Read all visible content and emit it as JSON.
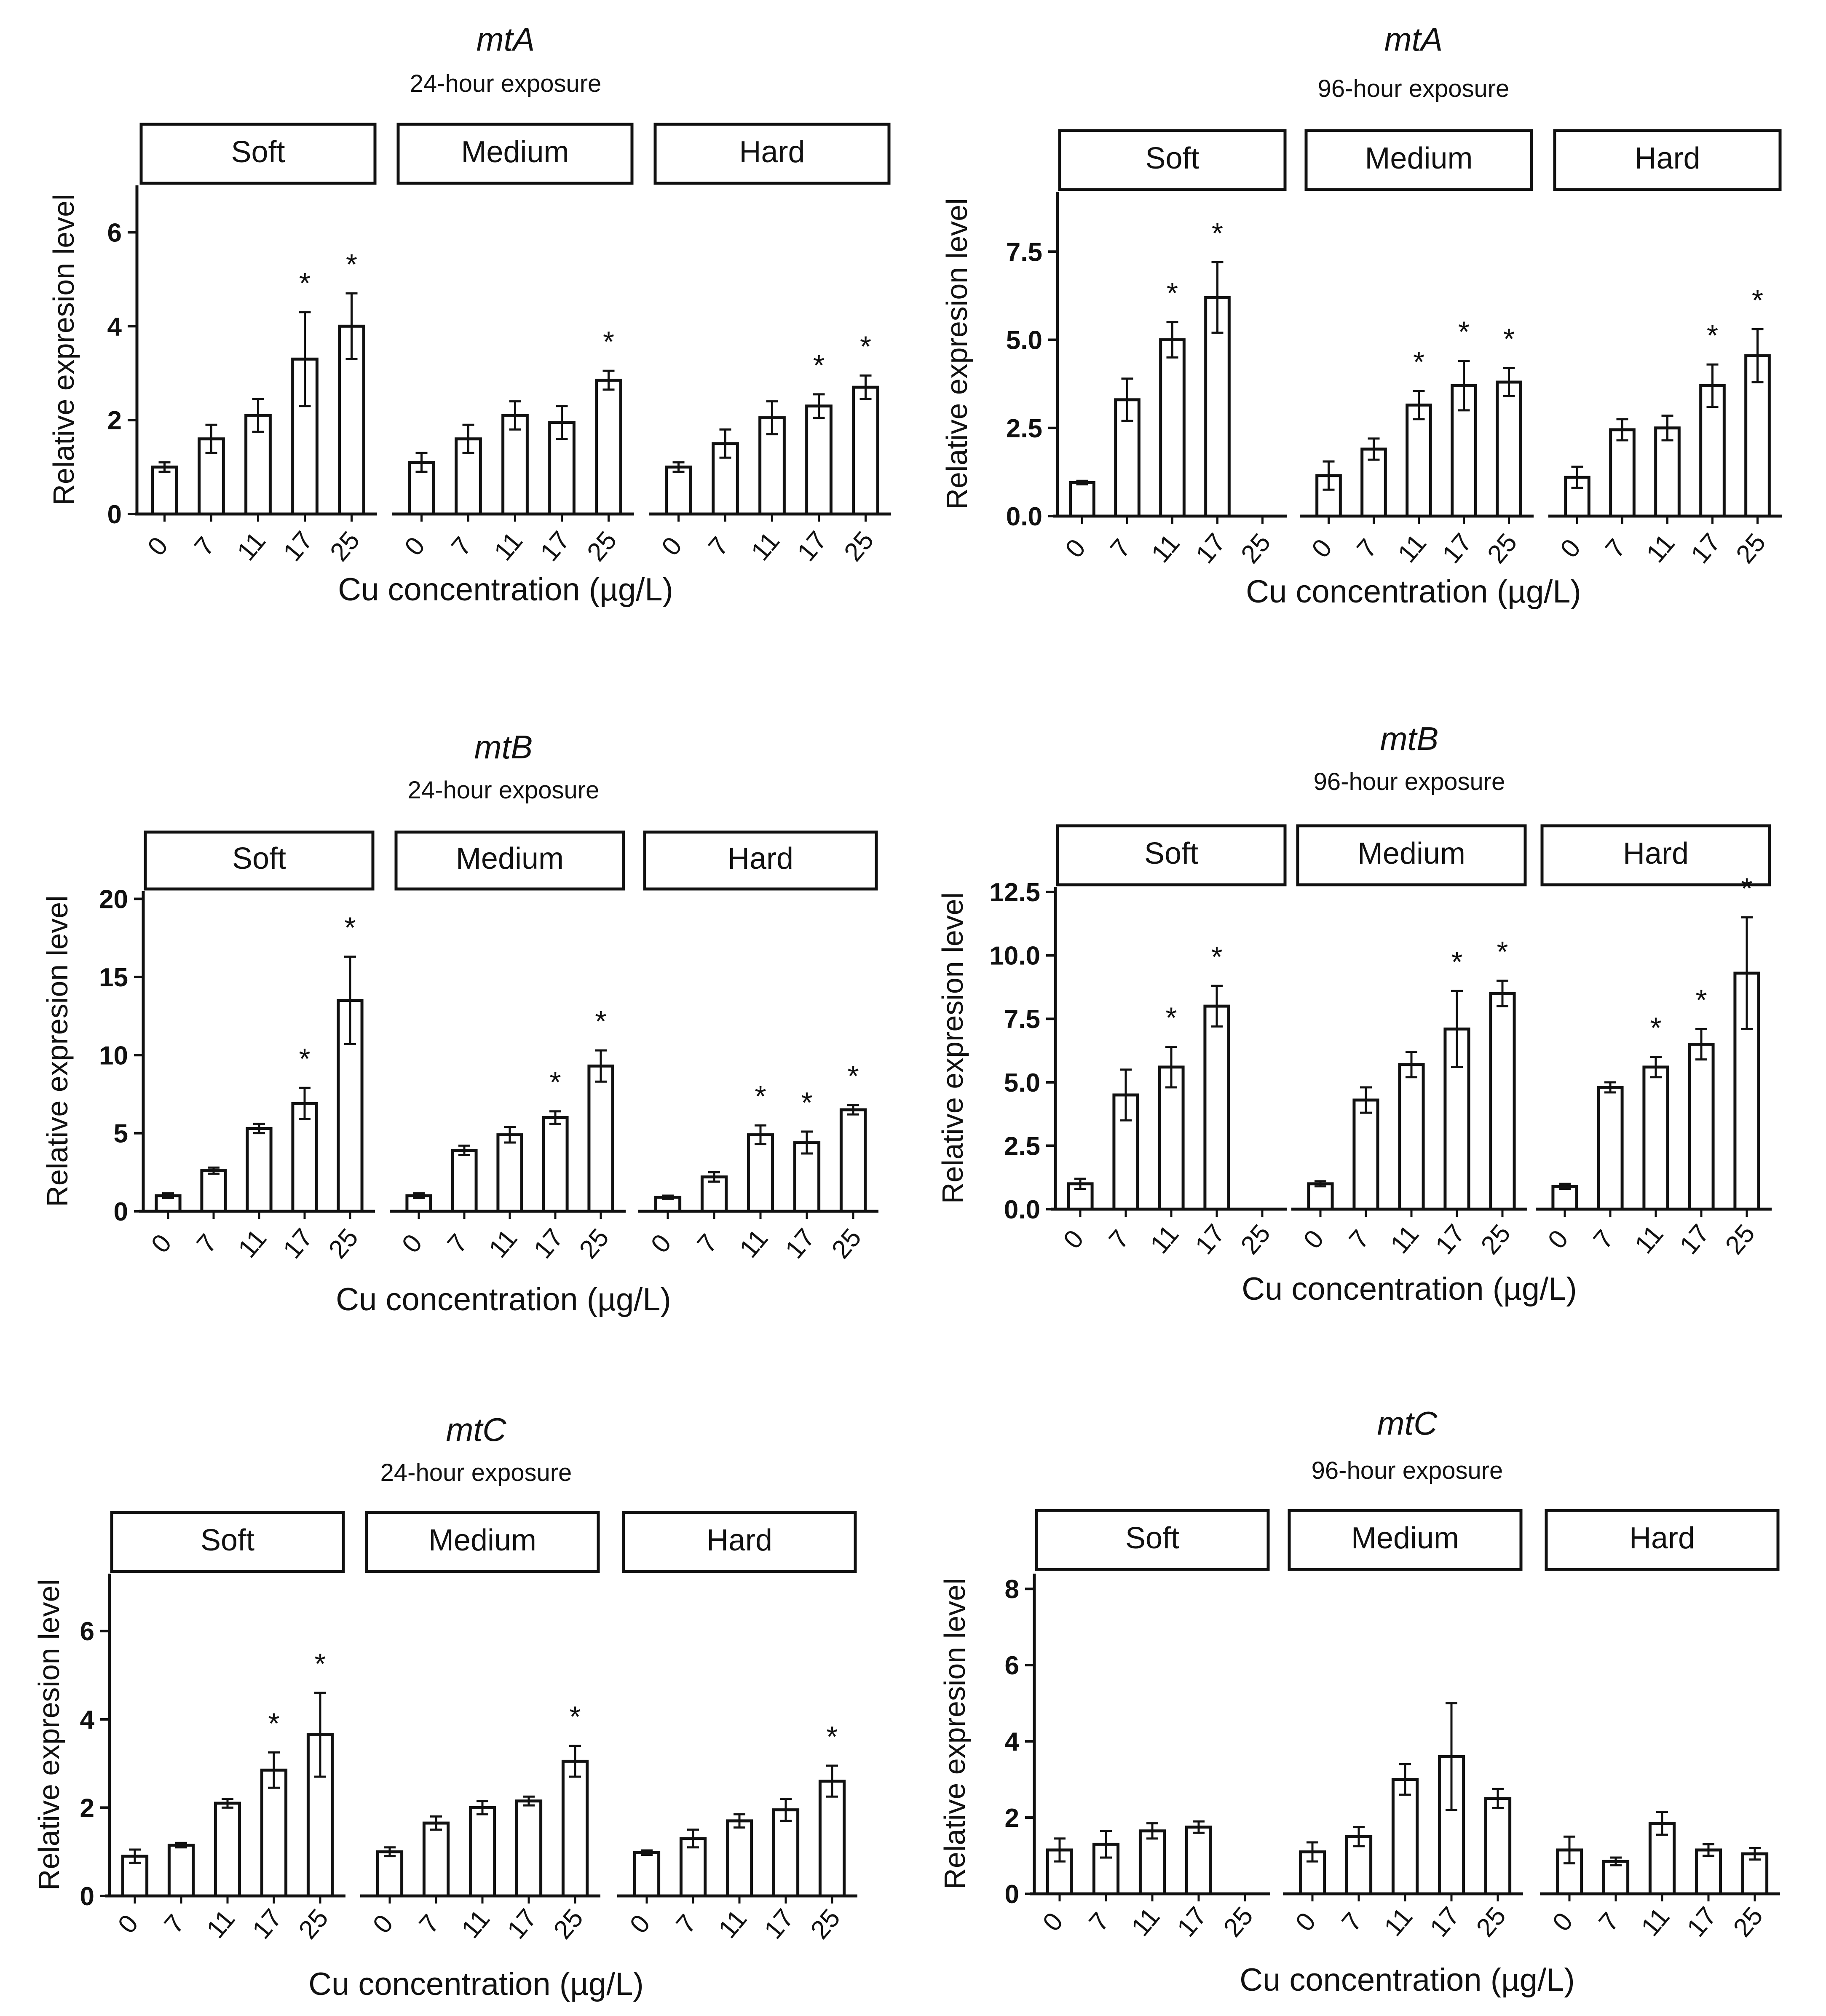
{
  "colors": {
    "ink": "#111111",
    "bar_fill": "#ffffff",
    "background": "#ffffff"
  },
  "chart_data": [
    {
      "type": "bar",
      "gene": "mtA",
      "title": "mtA",
      "subtitle": "24-hour exposure",
      "ylabel": "Relative expresion level",
      "xlabel": "Cu concentration (µg/L)",
      "ylim": [
        0,
        7
      ],
      "yticks": [
        "0",
        "2",
        "4",
        "6"
      ],
      "ytick_values": [
        0,
        2,
        4,
        6
      ],
      "categories": [
        "0",
        "7",
        "11",
        "17",
        "25"
      ],
      "panels": [
        {
          "name": "Soft",
          "values": [
            1.0,
            1.6,
            2.1,
            3.3,
            4.0
          ],
          "errors": [
            0.1,
            0.3,
            0.35,
            1.0,
            0.7
          ],
          "signif": [
            "",
            "",
            "",
            "*",
            "*"
          ]
        },
        {
          "name": "Medium",
          "values": [
            1.1,
            1.6,
            2.1,
            1.95,
            2.85
          ],
          "errors": [
            0.2,
            0.3,
            0.3,
            0.35,
            0.2
          ],
          "signif": [
            "",
            "",
            "",
            "",
            "*"
          ]
        },
        {
          "name": "Hard",
          "values": [
            1.0,
            1.5,
            2.05,
            2.3,
            2.7
          ],
          "errors": [
            0.1,
            0.3,
            0.35,
            0.25,
            0.25
          ],
          "signif": [
            "",
            "",
            "",
            "*",
            "*"
          ]
        }
      ]
    },
    {
      "type": "bar",
      "gene": "mtA",
      "title": "mtA",
      "subtitle": "96-hour exposure",
      "ylabel": "Relative expresion level",
      "xlabel": "Cu concentration (µg/L)",
      "ylim": [
        0,
        9.2
      ],
      "yticks": [
        "0.0",
        "2.5",
        "5.0",
        "7.5"
      ],
      "ytick_values": [
        0,
        2.5,
        5.0,
        7.5
      ],
      "categories": [
        "0",
        "7",
        "11",
        "17",
        "25"
      ],
      "panels": [
        {
          "name": "Soft",
          "values": [
            0.95,
            3.3,
            5.0,
            6.2,
            null
          ],
          "errors": [
            0.05,
            0.6,
            0.5,
            1.0,
            null
          ],
          "signif": [
            "",
            "",
            "*",
            "*",
            ""
          ]
        },
        {
          "name": "Medium",
          "values": [
            1.15,
            1.9,
            3.15,
            3.7,
            3.8
          ],
          "errors": [
            0.4,
            0.3,
            0.4,
            0.7,
            0.4
          ],
          "signif": [
            "",
            "",
            "*",
            "*",
            "*"
          ]
        },
        {
          "name": "Hard",
          "values": [
            1.1,
            2.45,
            2.5,
            3.7,
            4.55
          ],
          "errors": [
            0.3,
            0.3,
            0.35,
            0.6,
            0.75
          ],
          "signif": [
            "",
            "",
            "",
            "*",
            "*"
          ]
        }
      ]
    },
    {
      "type": "bar",
      "gene": "mtB",
      "title": "mtB",
      "subtitle": "24-hour exposure",
      "ylabel": "Relative expresion level",
      "xlabel": "Cu concentration (µg/L)",
      "ylim": [
        0,
        20.5
      ],
      "yticks": [
        "0",
        "5",
        "10",
        "15",
        "20"
      ],
      "ytick_values": [
        0,
        5,
        10,
        15,
        20
      ],
      "categories": [
        "0",
        "7",
        "11",
        "17",
        "25"
      ],
      "panels": [
        {
          "name": "Soft",
          "values": [
            1.0,
            2.6,
            5.3,
            6.9,
            13.5
          ],
          "errors": [
            0.15,
            0.2,
            0.3,
            1.0,
            2.8
          ],
          "signif": [
            "",
            "",
            "",
            "*",
            "*"
          ]
        },
        {
          "name": "Medium",
          "values": [
            1.0,
            3.9,
            4.9,
            6.0,
            9.3
          ],
          "errors": [
            0.15,
            0.3,
            0.5,
            0.4,
            1.0
          ],
          "signif": [
            "",
            "",
            "",
            "*",
            "*"
          ]
        },
        {
          "name": "Hard",
          "values": [
            0.9,
            2.2,
            4.9,
            4.4,
            6.5
          ],
          "errors": [
            0.1,
            0.3,
            0.6,
            0.7,
            0.3
          ],
          "signif": [
            "",
            "",
            "*",
            "*",
            "*"
          ]
        }
      ]
    },
    {
      "type": "bar",
      "gene": "mtB",
      "title": "mtB",
      "subtitle": "96-hour exposure",
      "ylabel": "Relative expresion level",
      "xlabel": "Cu concentration (µg/L)",
      "ylim": [
        0,
        12.7
      ],
      "yticks": [
        "0.0",
        "2.5",
        "5.0",
        "7.5",
        "10.0",
        "12.5"
      ],
      "ytick_values": [
        0,
        2.5,
        5.0,
        7.5,
        10.0,
        12.5
      ],
      "categories": [
        "0",
        "7",
        "11",
        "17",
        "25"
      ],
      "panels": [
        {
          "name": "Soft",
          "values": [
            1.0,
            4.5,
            5.6,
            8.0,
            null
          ],
          "errors": [
            0.2,
            1.0,
            0.8,
            0.8,
            null
          ],
          "signif": [
            "",
            "",
            "*",
            "*",
            ""
          ]
        },
        {
          "name": "Medium",
          "values": [
            1.0,
            4.3,
            5.7,
            7.1,
            8.5
          ],
          "errors": [
            0.1,
            0.5,
            0.5,
            1.5,
            0.5
          ],
          "signif": [
            "",
            "",
            "",
            "*",
            "*"
          ]
        },
        {
          "name": "Hard",
          "values": [
            0.9,
            4.8,
            5.6,
            6.5,
            9.3
          ],
          "errors": [
            0.1,
            0.2,
            0.4,
            0.6,
            2.2
          ],
          "signif": [
            "",
            "",
            "*",
            "*",
            "*"
          ]
        }
      ]
    },
    {
      "type": "bar",
      "gene": "mtC",
      "title": "mtC",
      "subtitle": "24-hour exposure",
      "ylabel": "Relative expresion level",
      "xlabel": "Cu concentration (µg/L)",
      "ylim": [
        0,
        7.3
      ],
      "yticks": [
        "0",
        "2",
        "4",
        "6"
      ],
      "ytick_values": [
        0,
        2,
        4,
        6
      ],
      "categories": [
        "0",
        "7",
        "11",
        "17",
        "25"
      ],
      "panels": [
        {
          "name": "Soft",
          "values": [
            0.9,
            1.15,
            2.1,
            2.85,
            3.65
          ],
          "errors": [
            0.15,
            0.05,
            0.1,
            0.4,
            0.95
          ],
          "signif": [
            "",
            "",
            "",
            "*",
            "*"
          ]
        },
        {
          "name": "Medium",
          "values": [
            1.0,
            1.65,
            2.0,
            2.15,
            3.05
          ],
          "errors": [
            0.1,
            0.15,
            0.15,
            0.1,
            0.35
          ],
          "signif": [
            "",
            "",
            "",
            "",
            "*"
          ]
        },
        {
          "name": "Hard",
          "values": [
            0.98,
            1.3,
            1.7,
            1.95,
            2.6
          ],
          "errors": [
            0.05,
            0.2,
            0.15,
            0.25,
            0.35
          ],
          "signif": [
            "",
            "",
            "",
            "",
            "*"
          ]
        }
      ]
    },
    {
      "type": "bar",
      "gene": "mtC",
      "title": "mtC",
      "subtitle": "96-hour exposure",
      "ylabel": "Relative expresion level",
      "xlabel": "Cu concentration (µg/L)",
      "ylim": [
        0,
        8.4
      ],
      "yticks": [
        "0",
        "2",
        "4",
        "6",
        "8"
      ],
      "ytick_values": [
        0,
        2,
        4,
        6,
        8
      ],
      "categories": [
        "0",
        "7",
        "11",
        "17",
        "25"
      ],
      "panels": [
        {
          "name": "Soft",
          "values": [
            1.15,
            1.3,
            1.65,
            1.75,
            null
          ],
          "errors": [
            0.3,
            0.35,
            0.2,
            0.15,
            null
          ],
          "signif": [
            "",
            "",
            "",
            "",
            ""
          ]
        },
        {
          "name": "Medium",
          "values": [
            1.1,
            1.5,
            3.0,
            3.6,
            2.5
          ],
          "errors": [
            0.25,
            0.25,
            0.4,
            1.4,
            0.25
          ],
          "signif": [
            "",
            "",
            "",
            "",
            ""
          ]
        },
        {
          "name": "Hard",
          "values": [
            1.15,
            0.85,
            1.85,
            1.15,
            1.05
          ],
          "errors": [
            0.35,
            0.1,
            0.3,
            0.15,
            0.15
          ],
          "signif": [
            "",
            "",
            "",
            "",
            ""
          ]
        }
      ]
    }
  ]
}
